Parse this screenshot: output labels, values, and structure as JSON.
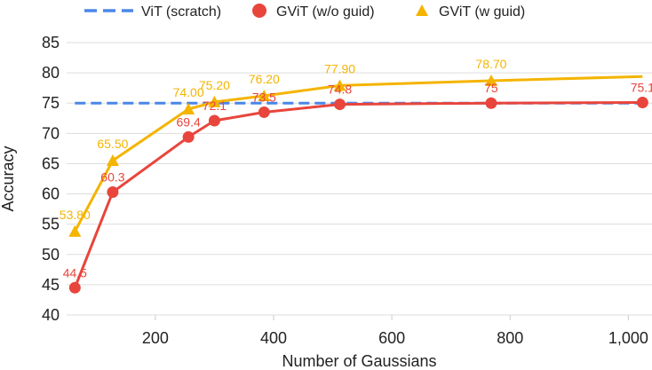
{
  "chart_data": {
    "type": "line",
    "title": "",
    "xlabel": "Number of Gaussians",
    "ylabel": "Accuracy",
    "xlim": [
      50,
      1040
    ],
    "ylim": [
      40,
      85
    ],
    "xticks": [
      200,
      400,
      600,
      800,
      1000
    ],
    "xtick_labels": [
      "200",
      "400",
      "600",
      "800",
      "1,000"
    ],
    "yticks": [
      40,
      45,
      50,
      55,
      60,
      65,
      70,
      75,
      80,
      85
    ],
    "ytick_labels": [
      "40",
      "45",
      "50",
      "55",
      "60",
      "65",
      "70",
      "75",
      "80",
      "85"
    ],
    "grid": "horizontal",
    "legend_position": "top",
    "series": [
      {
        "name": "ViT (scratch)",
        "kind": "reference-line",
        "color": "#4A86E8",
        "dash": true,
        "x": [
          64,
          1024
        ],
        "values": [
          75,
          75
        ],
        "labels": []
      },
      {
        "name": "GViT (w/o guid)",
        "kind": "line",
        "marker": "circle",
        "color": "#E8453C",
        "x": [
          64,
          128,
          256,
          300,
          384,
          512,
          768,
          1024
        ],
        "values": [
          44.5,
          60.3,
          69.4,
          72.1,
          73.5,
          74.8,
          75,
          75.1
        ],
        "labels": [
          "44.5",
          "60.3",
          "69.4",
          "72.1",
          "73.5",
          "74.8",
          "75",
          "75.1"
        ]
      },
      {
        "name": "GViT (w guid)",
        "kind": "line",
        "marker": "triangle",
        "color": "#F4B400",
        "x": [
          64,
          128,
          256,
          300,
          384,
          512,
          768,
          1024
        ],
        "values": [
          53.8,
          65.5,
          74.0,
          75.2,
          76.2,
          77.9,
          78.7,
          79.4
        ],
        "labels": [
          "53.80",
          "65.50",
          "74.00",
          "75.20",
          "76.20",
          "77.90",
          "78.70",
          ""
        ]
      }
    ]
  }
}
